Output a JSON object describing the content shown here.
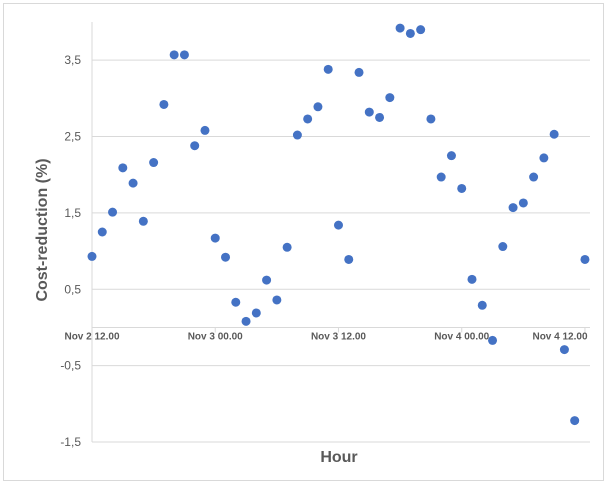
{
  "chart_data": {
    "type": "scatter",
    "title": "",
    "xlabel": "Hour",
    "ylabel": "Cost-reduction (%)",
    "ylim": [
      -1.5,
      4.0
    ],
    "yticks": [
      {
        "value": 3.5,
        "label": "3,5"
      },
      {
        "value": 2.5,
        "label": "2,5"
      },
      {
        "value": 1.5,
        "label": "1,5"
      },
      {
        "value": 0.5,
        "label": "0,5"
      },
      {
        "value": -0.5,
        "label": "-0,5"
      },
      {
        "value": -1.5,
        "label": "-1,5"
      }
    ],
    "xticks": [
      {
        "index": 0,
        "label": "Nov 2 12.00"
      },
      {
        "index": 12,
        "label": "Nov 3 00.00"
      },
      {
        "index": 24,
        "label": "Nov 3 12.00"
      },
      {
        "index": 36,
        "label": "Nov 4 00.00"
      },
      {
        "index": 48,
        "label": "Nov 4 12.00"
      }
    ],
    "grid": true,
    "series": [
      {
        "color": "#4472c4",
        "values": [
          0.93,
          1.25,
          1.51,
          2.09,
          1.89,
          1.39,
          2.16,
          2.92,
          3.57,
          3.57,
          2.38,
          2.58,
          1.17,
          0.92,
          0.33,
          0.08,
          0.19,
          0.62,
          0.36,
          1.05,
          2.52,
          2.73,
          2.89,
          3.38,
          1.34,
          0.89,
          3.34,
          2.82,
          2.75,
          3.01,
          3.92,
          3.85,
          3.9,
          2.73,
          1.97,
          2.25,
          1.82,
          0.63,
          0.29,
          -0.17,
          1.06,
          1.57,
          1.63,
          1.97,
          2.22,
          2.53,
          -0.29,
          -1.22,
          0.89
        ]
      }
    ]
  }
}
